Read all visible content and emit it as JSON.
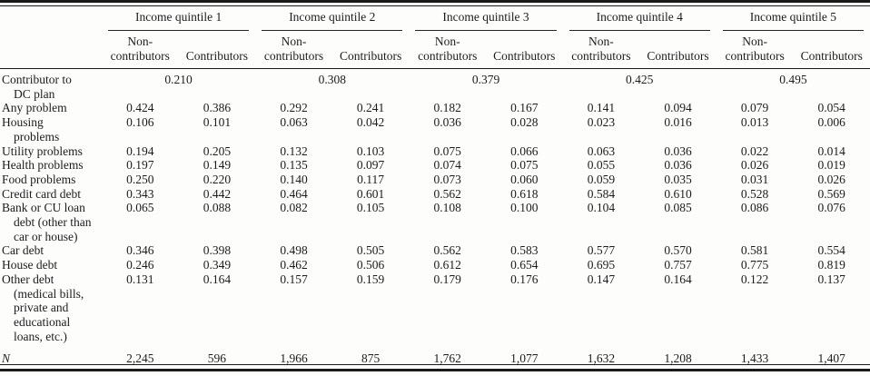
{
  "table": {
    "quintiles": [
      "Income quintile 1",
      "Income quintile 2",
      "Income quintile 3",
      "Income quintile 4",
      "Income quintile 5"
    ],
    "subheader": {
      "non_line1": "Non-",
      "non_line2": "contributors",
      "contributors": "Contributors"
    },
    "rows": [
      {
        "label_lines": [
          "Contributor to",
          "DC plan"
        ],
        "merged": true,
        "values": [
          "0.210",
          "0.308",
          "0.379",
          "0.425",
          "0.495"
        ]
      },
      {
        "label_lines": [
          "Any problem"
        ],
        "values": [
          "0.424",
          "0.386",
          "0.292",
          "0.241",
          "0.182",
          "0.167",
          "0.141",
          "0.094",
          "0.079",
          "0.054"
        ]
      },
      {
        "label_lines": [
          "Housing",
          "problems"
        ],
        "values": [
          "0.106",
          "0.101",
          "0.063",
          "0.042",
          "0.036",
          "0.028",
          "0.023",
          "0.016",
          "0.013",
          "0.006"
        ]
      },
      {
        "label_lines": [
          "Utility problems"
        ],
        "values": [
          "0.194",
          "0.205",
          "0.132",
          "0.103",
          "0.075",
          "0.066",
          "0.063",
          "0.036",
          "0.022",
          "0.014"
        ]
      },
      {
        "label_lines": [
          "Health problems"
        ],
        "values": [
          "0.197",
          "0.149",
          "0.135",
          "0.097",
          "0.074",
          "0.075",
          "0.055",
          "0.036",
          "0.026",
          "0.019"
        ]
      },
      {
        "label_lines": [
          "Food problems"
        ],
        "values": [
          "0.250",
          "0.220",
          "0.140",
          "0.117",
          "0.073",
          "0.060",
          "0.059",
          "0.035",
          "0.031",
          "0.026"
        ]
      },
      {
        "label_lines": [
          "Credit card debt"
        ],
        "values": [
          "0.343",
          "0.442",
          "0.464",
          "0.601",
          "0.562",
          "0.618",
          "0.584",
          "0.610",
          "0.528",
          "0.569"
        ]
      },
      {
        "label_lines": [
          "Bank or CU loan",
          "debt (other than",
          "car or house)"
        ],
        "values": [
          "0.065",
          "0.088",
          "0.082",
          "0.105",
          "0.108",
          "0.100",
          "0.104",
          "0.085",
          "0.086",
          "0.076"
        ]
      },
      {
        "label_lines": [
          "Car debt"
        ],
        "values": [
          "0.346",
          "0.398",
          "0.498",
          "0.505",
          "0.562",
          "0.583",
          "0.577",
          "0.570",
          "0.581",
          "0.554"
        ]
      },
      {
        "label_lines": [
          "House debt"
        ],
        "values": [
          "0.246",
          "0.349",
          "0.462",
          "0.506",
          "0.612",
          "0.654",
          "0.695",
          "0.757",
          "0.775",
          "0.819"
        ]
      },
      {
        "label_lines": [
          "Other debt",
          "(medical bills,",
          "private and",
          "educational",
          "loans, etc.)"
        ],
        "values": [
          "0.131",
          "0.164",
          "0.157",
          "0.159",
          "0.179",
          "0.176",
          "0.147",
          "0.164",
          "0.122",
          "0.137"
        ]
      },
      {
        "label_lines": [
          "N"
        ],
        "math_label": true,
        "values": [
          "2,245",
          "596",
          "1,966",
          "875",
          "1,762",
          "1,077",
          "1,632",
          "1,208",
          "1,433",
          "1,407"
        ]
      }
    ]
  }
}
